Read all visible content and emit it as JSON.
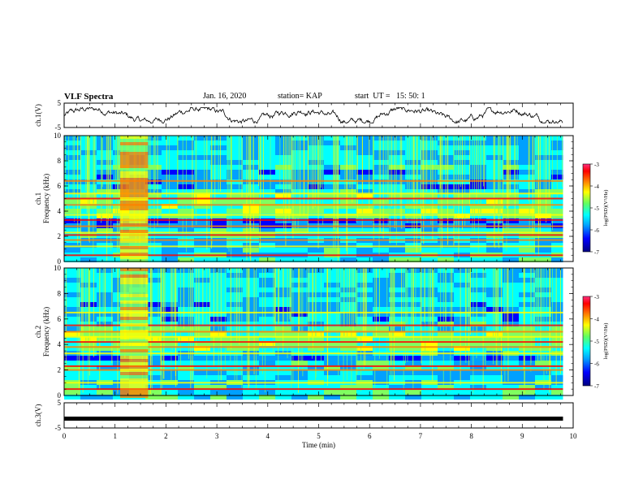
{
  "header": {
    "title": "VLF Spectra",
    "date": "Jan. 16, 2020",
    "station": "station= KAP",
    "start": "start  UT =   15: 50: 1"
  },
  "chart_data": [
    {
      "type": "line",
      "panel": "ch1-waveform",
      "ylabel": "ch.1(V)",
      "ylim": [
        -5,
        5
      ],
      "ytick_labels": [
        "-5",
        "5"
      ],
      "xlim": [
        0,
        10
      ],
      "xlabel": "",
      "note": "noisy waveform oscillating roughly between -3 and 3 V over 0-9.8 min"
    },
    {
      "type": "heatmap",
      "panel": "ch1-spectrogram",
      "ylabel": "ch.1  Frequency (kHz)",
      "ylim": [
        0,
        10
      ],
      "ytick_labels": [
        "0",
        "2",
        "4",
        "6",
        "8",
        "10"
      ],
      "xlim": [
        0,
        10
      ],
      "data_extent_x": [
        0,
        9.8
      ],
      "strong_bands_khz": [
        0.5,
        1.2,
        1.7,
        2.1,
        2.3,
        2.8,
        3.3,
        3.7,
        4.5,
        5.0,
        5.4,
        6.4
      ],
      "bright_interval_min": [
        1.1,
        1.65
      ],
      "colorbar": {
        "label": "log(PSD)(V²/Hz)",
        "range": [
          -7,
          -3
        ],
        "tick_labels": [
          "-3",
          "-4",
          "-5",
          "-6",
          "-7"
        ]
      }
    },
    {
      "type": "heatmap",
      "panel": "ch2-spectrogram",
      "ylabel": "ch.2  Frequency (kHz)",
      "ylim": [
        0,
        10
      ],
      "ytick_labels": [
        "0",
        "2",
        "4",
        "6",
        "8",
        "10"
      ],
      "xlim": [
        0,
        10
      ],
      "data_extent_x": [
        0,
        9.8
      ],
      "strong_bands_khz": [
        0.5,
        1.0,
        2.0,
        2.3,
        3.3,
        3.8,
        4.2,
        4.6,
        5.0,
        5.5,
        6.5
      ],
      "bright_interval_min": [
        1.1,
        1.65
      ],
      "colorbar": {
        "label": "log(PSD)(V²/Hz)",
        "range": [
          -7,
          -3
        ],
        "tick_labels": [
          "-3",
          "-4",
          "-5",
          "-6",
          "-7"
        ]
      }
    },
    {
      "type": "line",
      "panel": "ch3-waveform",
      "ylabel": "ch.3(V)",
      "ylim": [
        -5,
        5
      ],
      "ytick_labels": [
        "-5",
        "5"
      ],
      "xlim": [
        0,
        10
      ],
      "xlabel": "Time  (min)",
      "xtick_labels": [
        "0",
        "1",
        "2",
        "3",
        "4",
        "5",
        "6",
        "7",
        "8",
        "9",
        "10"
      ],
      "note": "flat thick trace near -1.3 V from 0 to 9.8 min"
    }
  ],
  "colors": {
    "scale": [
      "#000080",
      "#0000ff",
      "#00a0ff",
      "#00ffff",
      "#80ff60",
      "#ffff00",
      "#ff8000",
      "#ff0000",
      "#ff3080"
    ],
    "axes": "#000000"
  }
}
